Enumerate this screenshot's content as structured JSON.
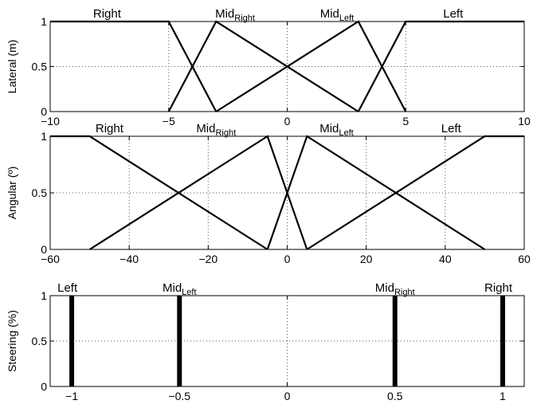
{
  "chart_data": [
    {
      "type": "line",
      "ylabel": "Lateral (m)",
      "xlim": [
        -10,
        10
      ],
      "ylim": [
        0,
        1
      ],
      "xticks": [
        -10,
        -5,
        0,
        5,
        10
      ],
      "yticks": [
        0,
        0.5,
        1
      ],
      "xtick_labels": [
        "−10",
        "−5",
        "0",
        "5",
        "10"
      ],
      "ytick_labels": [
        "0",
        "0.5",
        "1"
      ],
      "grid": true,
      "series": [
        {
          "name": "Right",
          "label": {
            "main": "Right",
            "sub": ""
          },
          "label_x": -7.6,
          "x": [
            -10,
            -5,
            -3
          ],
          "y": [
            1,
            1,
            0
          ]
        },
        {
          "name": "MidRight",
          "label": {
            "main": "Mid",
            "sub": "Right"
          },
          "label_x": -2.2,
          "x": [
            -5,
            -3,
            3
          ],
          "y": [
            0,
            1,
            0
          ]
        },
        {
          "name": "MidLeft",
          "label": {
            "main": "Mid",
            "sub": "Left"
          },
          "label_x": 2.1,
          "x": [
            -3,
            3,
            5
          ],
          "y": [
            0,
            1,
            0
          ]
        },
        {
          "name": "Left",
          "label": {
            "main": "Left",
            "sub": ""
          },
          "label_x": 7.0,
          "x": [
            3,
            5,
            10
          ],
          "y": [
            0,
            1,
            1
          ]
        }
      ]
    },
    {
      "type": "line",
      "ylabel": "Angular (º)",
      "xlim": [
        -60,
        60
      ],
      "ylim": [
        0,
        1
      ],
      "xticks": [
        -60,
        -40,
        -20,
        0,
        20,
        40,
        60
      ],
      "yticks": [
        0,
        0.5,
        1
      ],
      "xtick_labels": [
        "−60",
        "−40",
        "−20",
        "0",
        "20",
        "40",
        "60"
      ],
      "ytick_labels": [
        "0",
        "0.5",
        "1"
      ],
      "grid": true,
      "series": [
        {
          "name": "Right",
          "label": {
            "main": "Right",
            "sub": ""
          },
          "label_x": -45,
          "x": [
            -60,
            -50,
            -5
          ],
          "y": [
            1,
            1,
            0
          ]
        },
        {
          "name": "MidRight",
          "label": {
            "main": "Mid",
            "sub": "Right"
          },
          "label_x": -18,
          "x": [
            -50,
            -5,
            5
          ],
          "y": [
            0,
            1,
            0
          ]
        },
        {
          "name": "MidLeft",
          "label": {
            "main": "Mid",
            "sub": "Left"
          },
          "label_x": 12.5,
          "x": [
            -5,
            5,
            50
          ],
          "y": [
            0,
            1,
            0
          ]
        },
        {
          "name": "Left",
          "label": {
            "main": "Left",
            "sub": ""
          },
          "label_x": 41.5,
          "x": [
            5,
            50,
            60
          ],
          "y": [
            0,
            1,
            1
          ]
        }
      ]
    },
    {
      "type": "bar",
      "ylabel": "Steering (%)",
      "xlim": [
        -1.1,
        1.1
      ],
      "ylim": [
        0,
        1
      ],
      "xticks": [
        -1,
        -0.5,
        0,
        0.5,
        1
      ],
      "yticks": [
        0,
        0.5,
        1
      ],
      "xtick_labels": [
        "−1",
        "−0.5",
        "0",
        "0.5",
        "1"
      ],
      "ytick_labels": [
        "0",
        "0.5",
        "1"
      ],
      "grid": true,
      "series": [
        {
          "name": "Left",
          "label": {
            "main": "Left",
            "sub": ""
          },
          "label_x": -1.02,
          "x": [
            -1
          ],
          "y": [
            1
          ]
        },
        {
          "name": "MidLeft",
          "label": {
            "main": "Mid",
            "sub": "Left"
          },
          "label_x": -0.5,
          "x": [
            -0.5
          ],
          "y": [
            1
          ]
        },
        {
          "name": "MidRight",
          "label": {
            "main": "Mid",
            "sub": "Right"
          },
          "label_x": 0.5,
          "x": [
            0.5
          ],
          "y": [
            1
          ]
        },
        {
          "name": "Right",
          "label": {
            "main": "Right",
            "sub": ""
          },
          "label_x": 0.98,
          "x": [
            1
          ],
          "y": [
            1
          ]
        }
      ]
    }
  ]
}
